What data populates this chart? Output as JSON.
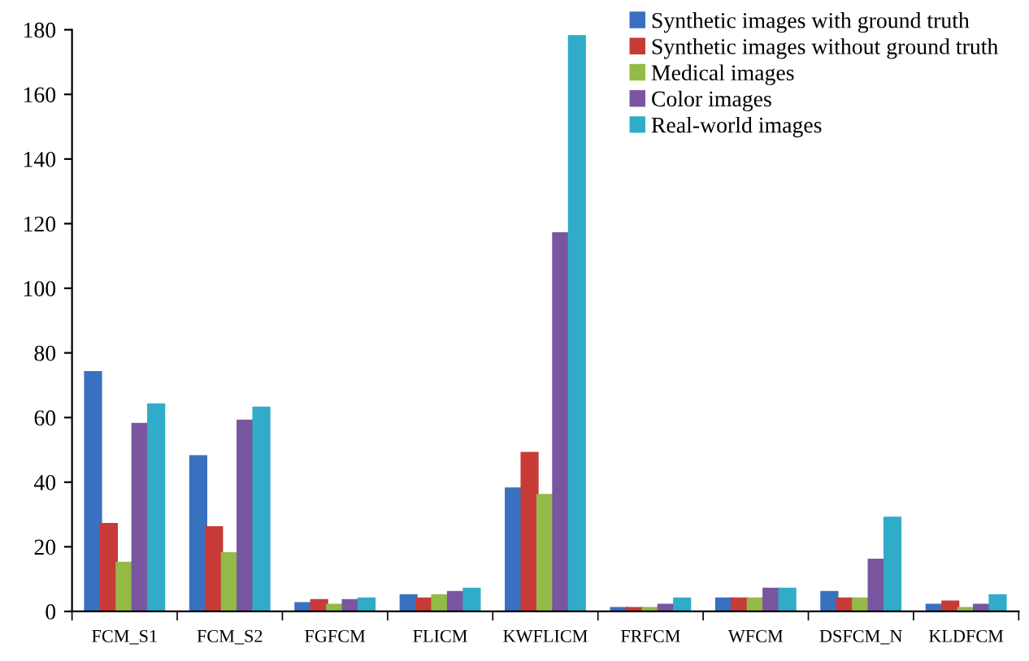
{
  "chart_data": {
    "type": "bar",
    "categories": [
      "FCM_S1",
      "FCM_S2",
      "FGFCM",
      "FLICM",
      "KWFLICM",
      "FRFCM",
      "WFCM",
      "DSFCM_N",
      "KLDFCM"
    ],
    "series": [
      {
        "name": "Synthetic images with ground truth",
        "color": "#3a70c0",
        "values": [
          74,
          48,
          2.5,
          5,
          38,
          1,
          4,
          6,
          2
        ]
      },
      {
        "name": "Synthetic images without ground truth",
        "color": "#c83a38",
        "values": [
          27,
          26,
          3.5,
          4,
          49,
          1,
          4,
          4,
          3
        ]
      },
      {
        "name": "Medical images",
        "color": "#94ba48",
        "values": [
          15,
          18,
          2,
          5,
          36,
          1,
          4,
          4,
          1
        ]
      },
      {
        "name": "Color images",
        "color": "#7a55a0",
        "values": [
          58,
          59,
          3.5,
          6,
          117,
          2,
          7,
          16,
          2
        ]
      },
      {
        "name": "Real-world images",
        "color": "#30acc8",
        "values": [
          64,
          63,
          4,
          7,
          178,
          4,
          7,
          29,
          5
        ]
      }
    ],
    "ylim": [
      0,
      180
    ],
    "yticks": [
      0,
      20,
      40,
      60,
      80,
      100,
      120,
      140,
      160,
      180
    ],
    "grid": false,
    "legend": "top right"
  }
}
